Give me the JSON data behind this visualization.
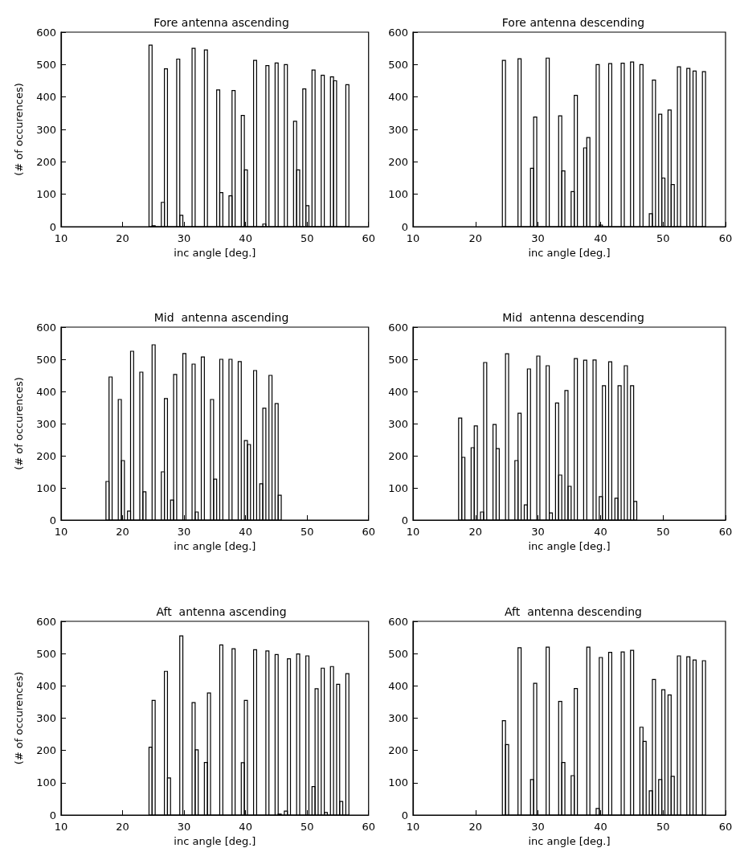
{
  "chart_data": [
    {
      "type": "histogram",
      "title": "Fore antenna ascending",
      "xlabel": "inc angle [deg.]",
      "ylabel": "(# of occurences)",
      "color": "#000000",
      "xlim": [
        10,
        60
      ],
      "xticks": [
        10,
        20,
        30,
        40,
        50,
        60
      ],
      "ylim": [
        0,
        600
      ],
      "yticks": [
        0,
        100,
        200,
        300,
        400,
        500,
        600
      ],
      "bins": [
        24.3,
        24.8,
        25.3,
        26.3,
        26.8,
        27.3,
        28.8,
        29.3,
        29.8,
        31.3,
        31.8,
        33.3,
        33.8,
        35.3,
        35.8,
        36.3,
        37.3,
        37.8,
        38.3,
        39.3,
        39.8,
        40.3,
        41.3,
        41.8,
        42.8,
        43.3,
        43.8,
        44.8,
        45.3,
        46.3,
        46.8,
        47.8,
        48.3,
        48.8,
        49.3,
        49.8,
        50.3,
        50.8,
        51.3,
        52.3,
        52.8,
        53.8,
        54.3,
        54.8,
        56.3,
        56.8
      ],
      "values": [
        560,
        3,
        0,
        75,
        487,
        0,
        517,
        35,
        0,
        550,
        0,
        545,
        0,
        422,
        105,
        0,
        95,
        420,
        0,
        343,
        175,
        0,
        513,
        0,
        8,
        497,
        0,
        505,
        0,
        500,
        0,
        325,
        175,
        0,
        425,
        65,
        0,
        483,
        0,
        467,
        0,
        462,
        450,
        0,
        438
      ]
    },
    {
      "type": "histogram",
      "title": "Fore antenna descending",
      "xlabel": "inc angle [deg.]",
      "color": "#000000",
      "xlim": [
        10,
        60
      ],
      "xticks": [
        10,
        20,
        30,
        40,
        50,
        60
      ],
      "ylim": [
        0,
        600
      ],
      "yticks": [
        0,
        100,
        200,
        300,
        400,
        500,
        600
      ],
      "bins": [
        24.3,
        24.8,
        26.8,
        27.3,
        28.8,
        29.3,
        29.8,
        31.3,
        31.8,
        33.3,
        33.8,
        34.3,
        35.3,
        35.8,
        36.3,
        37.3,
        37.8,
        38.3,
        39.3,
        39.8,
        40.3,
        41.3,
        41.8,
        43.3,
        43.8,
        44.8,
        45.3,
        46.3,
        46.8,
        47.8,
        48.3,
        48.8,
        49.3,
        49.8,
        50.3,
        50.8,
        51.3,
        51.8,
        52.3,
        52.8,
        53.8,
        54.3,
        54.8,
        55.3,
        56.3,
        56.8
      ],
      "values": [
        513,
        0,
        518,
        0,
        180,
        338,
        0,
        520,
        0,
        342,
        172,
        0,
        108,
        405,
        0,
        243,
        275,
        0,
        500,
        5,
        0,
        503,
        0,
        504,
        0,
        508,
        0,
        500,
        0,
        40,
        452,
        0,
        347,
        150,
        0,
        360,
        130,
        0,
        493,
        0,
        488,
        0,
        480,
        0,
        478
      ]
    },
    {
      "type": "histogram",
      "title": "Mid  antenna ascending",
      "xlabel": "inc angle [deg.]",
      "ylabel": "(# of occurences)",
      "color": "#000000",
      "xlim": [
        10,
        60
      ],
      "xticks": [
        10,
        20,
        30,
        40,
        50,
        60
      ],
      "ylim": [
        0,
        600
      ],
      "yticks": [
        0,
        100,
        200,
        300,
        400,
        500,
        600
      ],
      "bins": [
        17.3,
        17.8,
        18.3,
        19.3,
        19.8,
        20.3,
        20.8,
        21.3,
        21.8,
        22.8,
        23.3,
        23.8,
        24.8,
        25.3,
        26.3,
        26.8,
        27.3,
        27.8,
        28.3,
        28.8,
        29.8,
        30.3,
        31.3,
        31.8,
        32.3,
        32.8,
        33.3,
        34.3,
        34.8,
        35.3,
        35.8,
        36.3,
        37.3,
        37.8,
        38.8,
        39.3,
        39.8,
        40.3,
        40.8,
        41.3,
        41.8,
        42.3,
        42.8,
        43.3,
        43.8,
        44.3,
        44.8,
        45.3,
        45.8
      ],
      "values": [
        120,
        445,
        0,
        375,
        185,
        0,
        28,
        525,
        0,
        460,
        88,
        0,
        545,
        0,
        150,
        378,
        0,
        62,
        453,
        0,
        518,
        0,
        485,
        25,
        0,
        507,
        0,
        375,
        127,
        0,
        500,
        0,
        500,
        0,
        493,
        0,
        247,
        235,
        0,
        465,
        0,
        113,
        348,
        0,
        450,
        0,
        362,
        77
      ]
    },
    {
      "type": "histogram",
      "title": "Mid  antenna descending",
      "xlabel": "inc angle [deg.]",
      "color": "#000000",
      "xlim": [
        10,
        60
      ],
      "xticks": [
        10,
        20,
        30,
        40,
        50,
        60
      ],
      "ylim": [
        0,
        600
      ],
      "yticks": [
        0,
        100,
        200,
        300,
        400,
        500,
        600
      ],
      "bins": [
        17.3,
        17.8,
        18.3,
        19.3,
        19.8,
        20.3,
        20.8,
        21.3,
        21.8,
        22.8,
        23.3,
        23.8,
        24.8,
        25.3,
        26.3,
        26.8,
        27.3,
        27.8,
        28.3,
        28.8,
        29.8,
        30.3,
        31.3,
        31.8,
        32.3,
        32.8,
        33.3,
        33.8,
        34.3,
        34.8,
        35.3,
        35.8,
        36.3,
        37.3,
        37.8,
        38.8,
        39.3,
        39.8,
        40.3,
        40.8,
        41.3,
        41.8,
        42.3,
        42.8,
        43.3,
        43.8,
        44.3,
        44.8,
        45.3,
        45.8
      ],
      "values": [
        317,
        195,
        0,
        225,
        293,
        0,
        25,
        490,
        0,
        297,
        222,
        0,
        517,
        0,
        185,
        332,
        0,
        47,
        470,
        0,
        510,
        0,
        480,
        22,
        0,
        364,
        140,
        0,
        403,
        105,
        0,
        502,
        0,
        497,
        0,
        498,
        0,
        73,
        418,
        0,
        492,
        0,
        68,
        418,
        0,
        480,
        0,
        418,
        58
      ]
    },
    {
      "type": "histogram",
      "title": "Aft  antenna ascending",
      "xlabel": "inc angle [deg.]",
      "ylabel": "(# of occurences)",
      "color": "#000000",
      "xlim": [
        10,
        60
      ],
      "xticks": [
        10,
        20,
        30,
        40,
        50,
        60
      ],
      "ylim": [
        0,
        600
      ],
      "yticks": [
        0,
        100,
        200,
        300,
        400,
        500,
        600
      ],
      "bins": [
        24.3,
        24.8,
        25.3,
        26.8,
        27.3,
        27.8,
        29.3,
        29.8,
        31.3,
        31.8,
        32.3,
        33.3,
        33.8,
        34.3,
        35.8,
        36.3,
        37.8,
        38.3,
        39.3,
        39.8,
        40.3,
        41.3,
        41.8,
        43.3,
        43.8,
        44.8,
        45.3,
        45.8,
        46.3,
        46.8,
        47.3,
        48.3,
        48.8,
        49.8,
        50.3,
        50.8,
        51.3,
        51.8,
        52.3,
        52.8,
        53.3,
        53.8,
        54.3,
        54.8,
        55.3,
        55.8,
        56.3,
        56.8
      ],
      "values": [
        210,
        355,
        0,
        445,
        115,
        0,
        555,
        0,
        348,
        202,
        0,
        163,
        378,
        0,
        527,
        0,
        515,
        0,
        162,
        355,
        0,
        512,
        0,
        508,
        0,
        497,
        3,
        0,
        12,
        484,
        0,
        499,
        0,
        493,
        0,
        88,
        391,
        0,
        455,
        8,
        0,
        460,
        0,
        405,
        42,
        0,
        438
      ]
    },
    {
      "type": "histogram",
      "title": "Aft  antenna descending",
      "xlabel": "inc angle [deg.]",
      "color": "#000000",
      "xlim": [
        10,
        60
      ],
      "xticks": [
        10,
        20,
        30,
        40,
        50,
        60
      ],
      "ylim": [
        0,
        600
      ],
      "yticks": [
        0,
        100,
        200,
        300,
        400,
        500,
        600
      ],
      "bins": [
        24.3,
        24.8,
        25.3,
        26.8,
        27.3,
        28.8,
        29.3,
        29.8,
        31.3,
        31.8,
        33.3,
        33.8,
        34.3,
        35.3,
        35.8,
        36.3,
        37.8,
        38.3,
        39.3,
        39.8,
        40.3,
        41.3,
        41.8,
        43.3,
        43.8,
        44.8,
        45.3,
        46.3,
        46.8,
        47.3,
        47.8,
        48.3,
        48.8,
        49.3,
        49.8,
        50.3,
        50.8,
        51.3,
        51.8,
        52.3,
        52.8,
        53.8,
        54.3,
        54.8,
        55.3,
        56.3,
        56.8
      ],
      "values": [
        292,
        218,
        0,
        518,
        0,
        110,
        408,
        0,
        520,
        0,
        352,
        163,
        0,
        122,
        392,
        0,
        520,
        0,
        20,
        488,
        0,
        504,
        0,
        505,
        0,
        510,
        0,
        272,
        228,
        0,
        75,
        420,
        0,
        110,
        388,
        0,
        372,
        120,
        0,
        493,
        0,
        490,
        0,
        480,
        0,
        478
      ]
    }
  ]
}
